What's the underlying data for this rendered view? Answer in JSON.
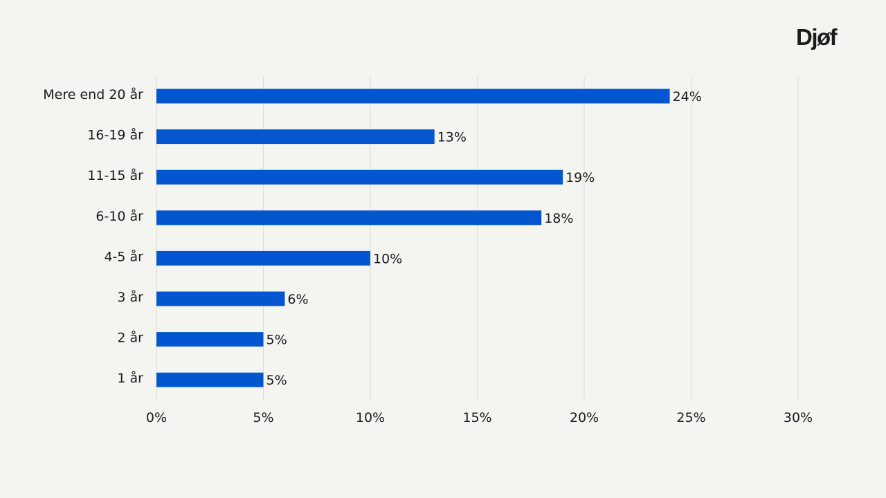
{
  "logo": {
    "text": "Djøf"
  },
  "colors": {
    "bar": "#0356d0",
    "grid": "#dcdcd8",
    "background": "#f4f4f1",
    "text": "#1b1b1b"
  },
  "chart_data": {
    "type": "bar",
    "orientation": "horizontal",
    "categories": [
      "Mere end 20 år",
      "16-19 år",
      "11-15 år",
      "6-10 år",
      "4-5 år",
      "3 år",
      "2 år",
      "1 år"
    ],
    "values": [
      24,
      13,
      19,
      18,
      10,
      6,
      5,
      5
    ],
    "value_labels": [
      "24%",
      "13%",
      "19%",
      "18%",
      "10%",
      "6%",
      "5%",
      "5%"
    ],
    "xlim": [
      0,
      30
    ],
    "xticks": [
      0,
      5,
      10,
      15,
      20,
      25,
      30
    ],
    "xtick_labels": [
      "0%",
      "5%",
      "10%",
      "15%",
      "20%",
      "25%",
      "30%"
    ],
    "grid": "vertical",
    "title": "",
    "xlabel": "",
    "ylabel": ""
  }
}
